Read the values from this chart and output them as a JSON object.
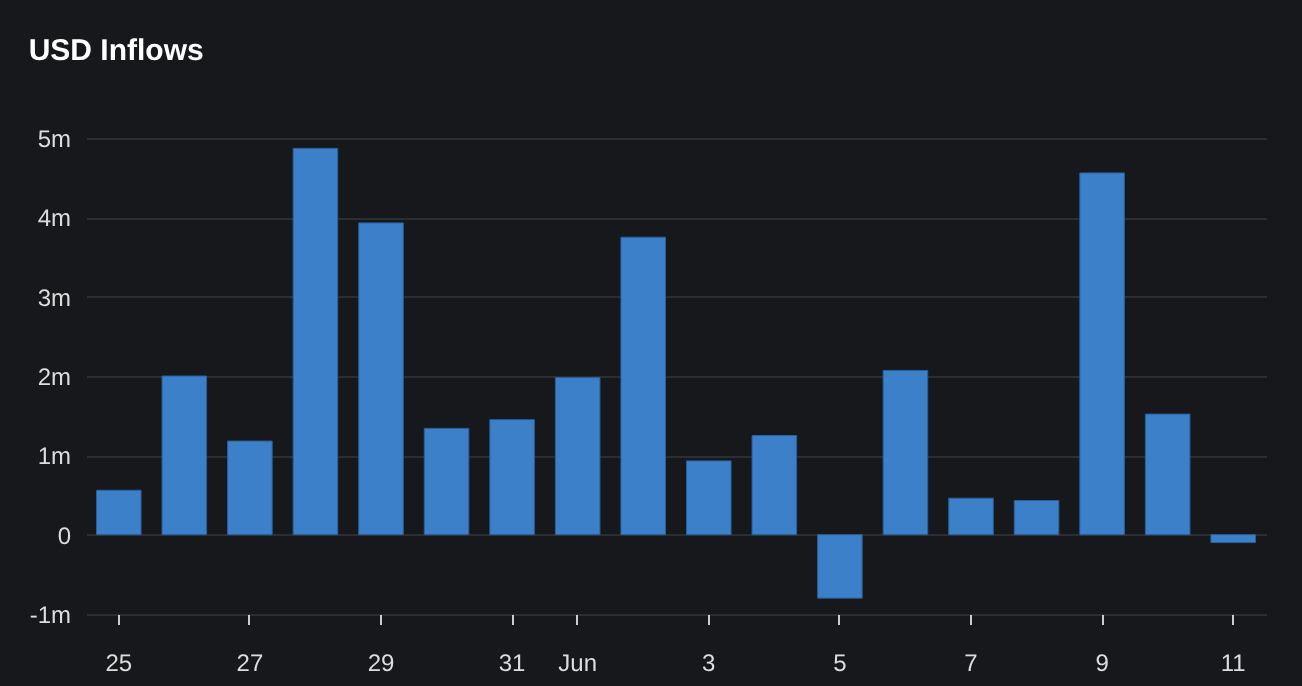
{
  "chart_data": {
    "type": "bar",
    "title": "USD Inflows",
    "categories": [
      "25",
      null,
      "27",
      null,
      "29",
      null,
      "31",
      "Jun",
      null,
      "3",
      null,
      "5",
      null,
      "7",
      null,
      "9",
      null,
      "11"
    ],
    "values": [
      0.56,
      2.0,
      1.18,
      4.87,
      3.93,
      1.34,
      1.45,
      1.98,
      3.75,
      0.93,
      1.25,
      -0.8,
      2.07,
      0.46,
      0.43,
      4.56,
      1.52,
      -0.1
    ],
    "color": "#3b80c8",
    "ylim": [
      -1,
      5
    ],
    "yticks": [
      {
        "value": -1,
        "label": "-1m"
      },
      {
        "value": 0,
        "label": "0"
      },
      {
        "value": 1,
        "label": "1m"
      },
      {
        "value": 2,
        "label": "2m"
      },
      {
        "value": 3,
        "label": "3m"
      },
      {
        "value": 4,
        "label": "4m"
      },
      {
        "value": 5,
        "label": "5m"
      }
    ],
    "grid": "y"
  }
}
